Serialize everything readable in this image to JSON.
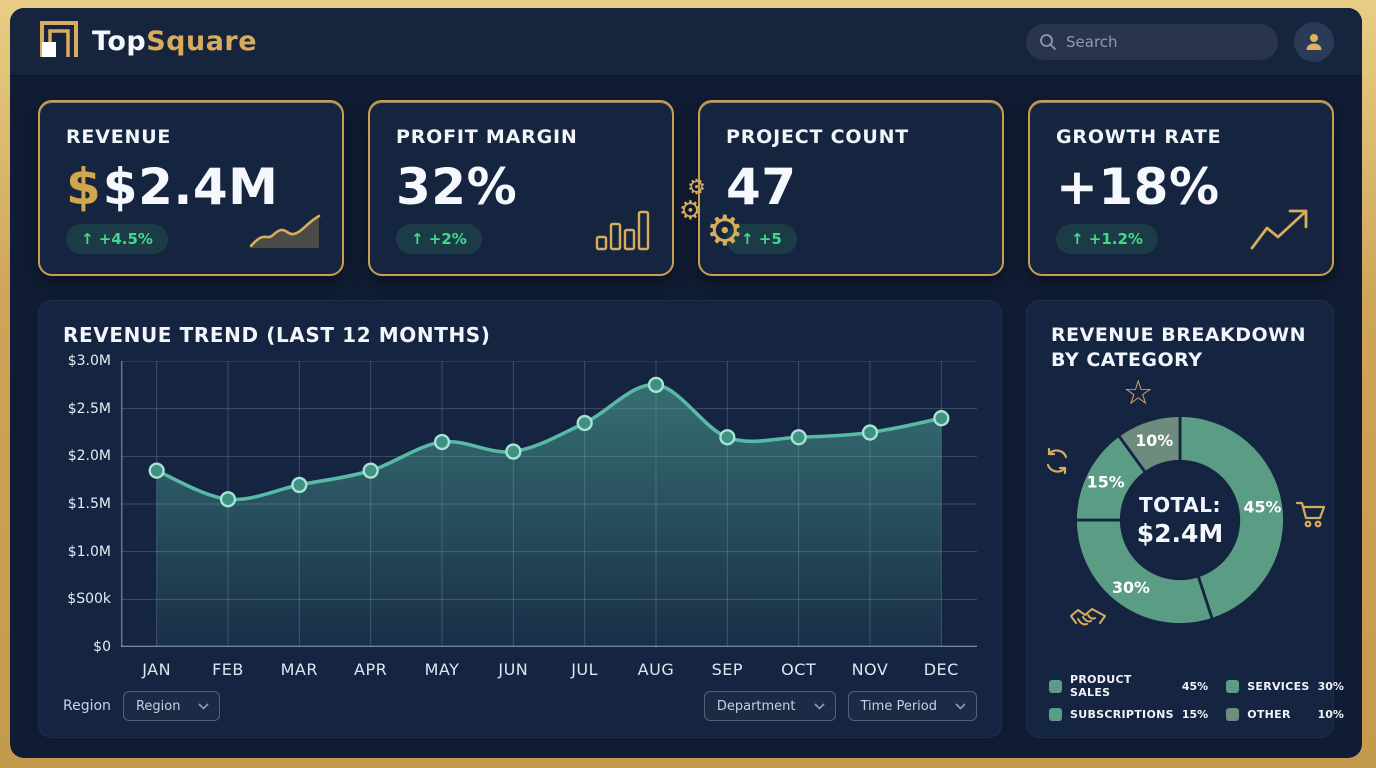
{
  "brand": {
    "name_primary": "Top",
    "name_secondary": "Square"
  },
  "header": {
    "search_placeholder": "Search"
  },
  "kpis": [
    {
      "title": "REVENUE",
      "value_prefix": "$",
      "value": "$2.4M",
      "badge": "↑ +4.5%",
      "icon": "sparkline-icon"
    },
    {
      "title": "PROFIT MARGIN",
      "value": "32%",
      "badge": "↑ +2%",
      "icon": "bar-chart-icon"
    },
    {
      "title": "PROJECT COUNT",
      "value": "47",
      "badge": "↑ +5",
      "icon": "gears-icon"
    },
    {
      "title": "GROWTH RATE",
      "value": "+18%",
      "badge": "↑ +1.2%",
      "icon": "trending-up-icon"
    }
  ],
  "trend_panel": {
    "title": "REVENUE TREND (LAST 12 MONTHS)",
    "region_label": "Region",
    "filters": {
      "region": "Region",
      "department": "Department",
      "time_period": "Time Period"
    }
  },
  "breakdown_panel": {
    "title": "REVENUE BREAKDOWN BY CATEGORY",
    "center_label": "TOTAL:",
    "center_value": "$2.4M"
  },
  "colors": {
    "gold_accent": "#D7AC5C",
    "teal_line": "#57B9A6",
    "donut_green": "#5B9C85",
    "donut_other": "#6E8C7D",
    "badge_green": "#41D98A",
    "panel_bg": "#152440"
  },
  "chart_data": [
    {
      "type": "area",
      "title": "REVENUE TREND (LAST 12 MONTHS)",
      "x": [
        "JAN",
        "FEB",
        "MAR",
        "APR",
        "MAY",
        "JUN",
        "JUL",
        "AUG",
        "SEP",
        "OCT",
        "NOV",
        "DEC"
      ],
      "values": [
        1.85,
        1.55,
        1.7,
        1.85,
        2.15,
        2.05,
        2.35,
        2.75,
        2.2,
        2.2,
        2.25,
        2.4
      ],
      "unit": "$M",
      "ylim": [
        0,
        3
      ],
      "ytick_labels": [
        "$3.0M",
        "$2.5M",
        "$2.0M",
        "$1.5M",
        "$1.0M",
        "$S00k",
        "$0"
      ],
      "grid": true,
      "line_color": "#57B9A6",
      "point_fill": "#3E9183",
      "point_ring": "#A8E4D6"
    },
    {
      "type": "pie",
      "style": "donut",
      "total_label": "TOTAL:",
      "total_value": "$2.4M",
      "legend_position": "bottom",
      "segments": [
        {
          "label": "PRODUCT SALES",
          "pct": "45%",
          "value": 45,
          "color": "#5B9C85"
        },
        {
          "label": "SERVICES",
          "pct": "30%",
          "value": 30,
          "color": "#5B9C85"
        },
        {
          "label": "SUBSCRIPTIONS",
          "pct": "15%",
          "value": 15,
          "color": "#5B9C85"
        },
        {
          "label": "OTHER",
          "pct": "10%",
          "value": 10,
          "color": "#6E8C7D"
        }
      ]
    }
  ]
}
